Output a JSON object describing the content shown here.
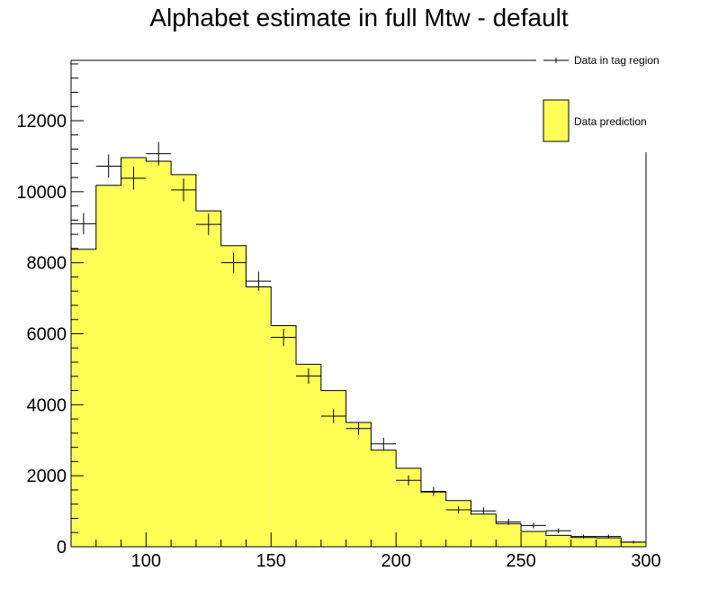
{
  "chart_data": {
    "type": "bar",
    "title": "Alphabet estimate in full Mtw - default",
    "xlabel": "",
    "ylabel": "",
    "xlim": [
      70,
      300
    ],
    "ylim": [
      0,
      13700
    ],
    "x_ticks": [
      100,
      150,
      200,
      250,
      300
    ],
    "y_ticks": [
      0,
      2000,
      4000,
      6000,
      8000,
      10000,
      12000
    ],
    "grid": false,
    "legend_position": "top-right",
    "colors": {
      "prediction_fill": "#ffff55",
      "line": "#000000"
    },
    "bin_edges": [
      70,
      80,
      90,
      100,
      110,
      120,
      130,
      140,
      150,
      160,
      170,
      180,
      190,
      200,
      210,
      220,
      230,
      240,
      250,
      260,
      270,
      280,
      290,
      300
    ],
    "series": [
      {
        "name": "Data prediction",
        "kind": "histogram",
        "values": [
          8380,
          10180,
          10960,
          10860,
          10480,
          9460,
          8480,
          7320,
          6230,
          5140,
          4400,
          3500,
          2720,
          2210,
          1540,
          1300,
          920,
          650,
          430,
          320,
          260,
          250,
          130
        ]
      },
      {
        "name": "Data in tag region",
        "kind": "points-with-errors",
        "x": [
          75,
          85,
          95,
          105,
          115,
          125,
          135,
          145,
          155,
          165,
          175,
          185,
          195,
          205,
          215,
          225,
          235,
          245,
          255,
          265,
          275,
          285,
          295
        ],
        "values": [
          9100,
          10720,
          10380,
          11070,
          10050,
          9080,
          8000,
          7480,
          5900,
          4810,
          3680,
          3330,
          2900,
          1870,
          1560,
          1040,
          1010,
          700,
          600,
          450,
          290,
          290,
          130
        ],
        "errors": [
          300,
          330,
          320,
          330,
          320,
          300,
          280,
          270,
          240,
          220,
          190,
          180,
          170,
          140,
          125,
          100,
          100,
          85,
          80,
          70,
          55,
          55,
          40
        ]
      }
    ]
  }
}
